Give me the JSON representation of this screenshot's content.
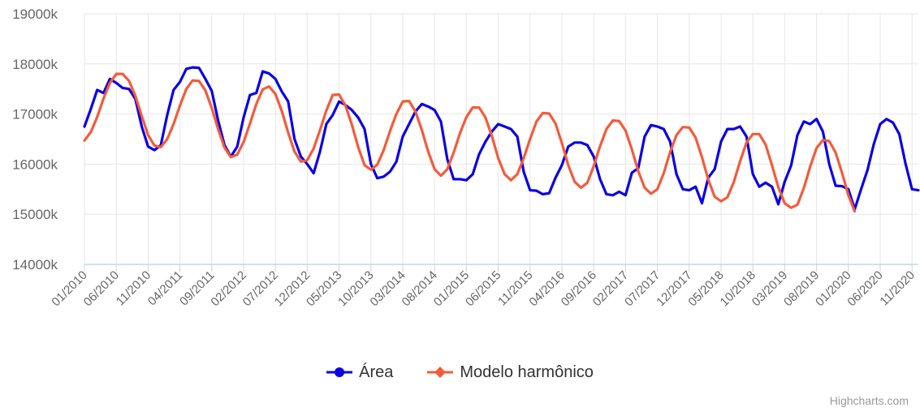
{
  "chart_data": {
    "type": "line",
    "ylim": [
      14000,
      19000
    ],
    "y_ticks": [
      "14000k",
      "15000k",
      "16000k",
      "17000k",
      "18000k",
      "19000k"
    ],
    "x_tick_labels": [
      "01/2010",
      "06/2010",
      "11/2010",
      "04/2011",
      "09/2011",
      "02/2012",
      "07/2012",
      "12/2012",
      "05/2013",
      "10/2013",
      "03/2014",
      "08/2014",
      "01/2015",
      "06/2015",
      "11/2015",
      "04/2016",
      "09/2016",
      "02/2017",
      "07/2017",
      "12/2017",
      "05/2018",
      "10/2018",
      "03/2019",
      "08/2019",
      "01/2020",
      "06/2020",
      "11/2020"
    ],
    "x_start": "01/2010",
    "grid": true,
    "legend_placement": "bottom-center",
    "series": [
      {
        "name": "Área",
        "color": "#0b00e6",
        "marker": "circle",
        "values": [
          16750,
          17100,
          17480,
          17420,
          17700,
          17620,
          17520,
          17500,
          17300,
          16750,
          16350,
          16280,
          16380,
          16980,
          17480,
          17640,
          17900,
          17930,
          17920,
          17700,
          17460,
          16870,
          16380,
          16150,
          16350,
          16930,
          17380,
          17420,
          17850,
          17810,
          17700,
          17450,
          17250,
          16500,
          16150,
          16000,
          15820,
          16250,
          16800,
          16980,
          17250,
          17180,
          17080,
          16930,
          16700,
          16000,
          15720,
          15750,
          15850,
          16050,
          16550,
          16800,
          17050,
          17200,
          17150,
          17080,
          16850,
          16100,
          15700,
          15700,
          15680,
          15800,
          16200,
          16450,
          16650,
          16800,
          16750,
          16700,
          16550,
          15850,
          15480,
          15470,
          15400,
          15420,
          15730,
          15980,
          16350,
          16430,
          16430,
          16380,
          16150,
          15700,
          15400,
          15380,
          15450,
          15380,
          15830,
          15920,
          16550,
          16780,
          16750,
          16700,
          16450,
          15800,
          15500,
          15480,
          15550,
          15220,
          15730,
          15900,
          16450,
          16700,
          16700,
          16750,
          16550,
          15800,
          15550,
          15630,
          15550,
          15200,
          15650,
          15970,
          16580,
          16850,
          16800,
          16900,
          16650,
          16000,
          15570,
          15560,
          15500,
          15100,
          15500,
          15880,
          16400,
          16800,
          16900,
          16830,
          16600,
          16000,
          15500,
          15480
        ]
      },
      {
        "name": "Modelo harmônico",
        "color": "#f45b3b",
        "marker": "diamond",
        "values": [
          16470,
          16640,
          16940,
          17310,
          17620,
          17800,
          17800,
          17660,
          17360,
          16960,
          16580,
          16370,
          16340,
          16500,
          16800,
          17170,
          17500,
          17670,
          17660,
          17470,
          17120,
          16700,
          16330,
          16140,
          16190,
          16440,
          16810,
          17200,
          17490,
          17550,
          17400,
          17060,
          16630,
          16250,
          16050,
          16080,
          16310,
          16680,
          17070,
          17380,
          17390,
          17170,
          16790,
          16340,
          15980,
          15890,
          15990,
          16280,
          16660,
          17000,
          17250,
          17260,
          17050,
          16680,
          16250,
          15900,
          15770,
          15900,
          16230,
          16620,
          16940,
          17130,
          17130,
          16930,
          16560,
          16120,
          15800,
          15680,
          15800,
          16120,
          16500,
          16850,
          17020,
          17010,
          16810,
          16420,
          15980,
          15650,
          15530,
          15630,
          15960,
          16360,
          16700,
          16870,
          16860,
          16670,
          16290,
          15860,
          15530,
          15410,
          15500,
          15820,
          16240,
          16580,
          16740,
          16730,
          16530,
          16140,
          15690,
          15350,
          15260,
          15340,
          15640,
          16060,
          16430,
          16600,
          16600,
          16390,
          15980,
          15540,
          15220,
          15130,
          15190,
          15520,
          15950,
          16320,
          16480,
          16460,
          16230,
          15830,
          15380,
          15060
        ]
      }
    ]
  },
  "legend": {
    "items": [
      {
        "label": "Área",
        "color": "#0b00e6"
      },
      {
        "label": "Modelo harmônico",
        "color": "#f45b3b"
      }
    ]
  },
  "credits": "Highcharts.com"
}
